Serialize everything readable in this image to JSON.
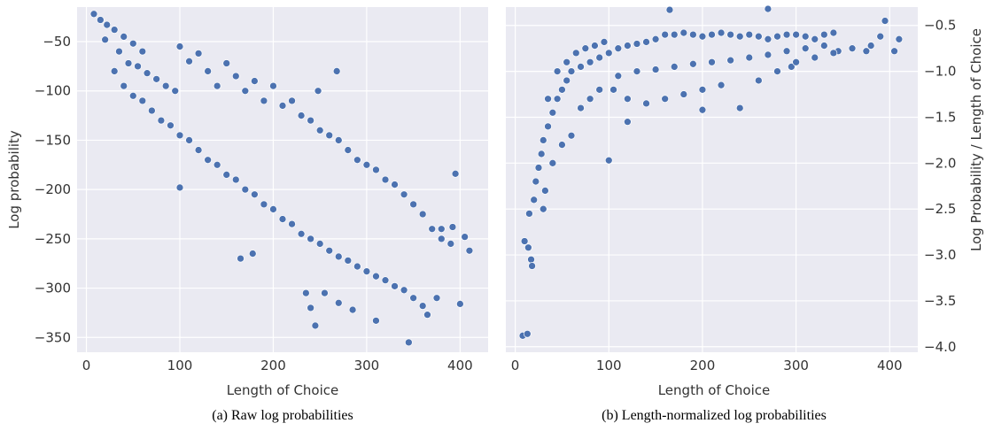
{
  "chart_data": [
    {
      "type": "scatter",
      "subplot_caption": "(a) Raw log probabilities",
      "xlabel": "Length of Choice",
      "ylabel": "Log probability",
      "xlim": [
        -10,
        430
      ],
      "ylim": [
        -365,
        -15
      ],
      "xticks": [
        0,
        100,
        200,
        300,
        400
      ],
      "yticks": [
        -350,
        -300,
        -250,
        -200,
        -150,
        -100,
        -50
      ],
      "ytick_labels": [
        "−350",
        "−300",
        "−250",
        "−200",
        "−150",
        "−100",
        "−50"
      ],
      "grid": true,
      "color": "#4c72b0",
      "points": [
        [
          8,
          -22
        ],
        [
          15,
          -28
        ],
        [
          22,
          -33
        ],
        [
          30,
          -38
        ],
        [
          40,
          -45
        ],
        [
          50,
          -52
        ],
        [
          60,
          -60
        ],
        [
          20,
          -48
        ],
        [
          35,
          -60
        ],
        [
          45,
          -72
        ],
        [
          55,
          -75
        ],
        [
          65,
          -82
        ],
        [
          75,
          -88
        ],
        [
          85,
          -95
        ],
        [
          95,
          -100
        ],
        [
          100,
          -55
        ],
        [
          110,
          -70
        ],
        [
          120,
          -62
        ],
        [
          130,
          -80
        ],
        [
          140,
          -95
        ],
        [
          150,
          -72
        ],
        [
          160,
          -85
        ],
        [
          170,
          -100
        ],
        [
          180,
          -90
        ],
        [
          190,
          -110
        ],
        [
          200,
          -95
        ],
        [
          210,
          -115
        ],
        [
          220,
          -110
        ],
        [
          230,
          -125
        ],
        [
          240,
          -130
        ],
        [
          250,
          -140
        ],
        [
          260,
          -145
        ],
        [
          270,
          -150
        ],
        [
          280,
          -160
        ],
        [
          290,
          -170
        ],
        [
          300,
          -175
        ],
        [
          310,
          -180
        ],
        [
          320,
          -190
        ],
        [
          330,
          -195
        ],
        [
          340,
          -205
        ],
        [
          350,
          -215
        ],
        [
          360,
          -225
        ],
        [
          370,
          -240
        ],
        [
          380,
          -250
        ],
        [
          390,
          -255
        ],
        [
          30,
          -80
        ],
        [
          40,
          -95
        ],
        [
          50,
          -105
        ],
        [
          60,
          -110
        ],
        [
          70,
          -120
        ],
        [
          80,
          -130
        ],
        [
          90,
          -135
        ],
        [
          100,
          -145
        ],
        [
          110,
          -150
        ],
        [
          120,
          -160
        ],
        [
          130,
          -170
        ],
        [
          140,
          -175
        ],
        [
          150,
          -185
        ],
        [
          160,
          -190
        ],
        [
          170,
          -200
        ],
        [
          180,
          -205
        ],
        [
          190,
          -215
        ],
        [
          200,
          -220
        ],
        [
          210,
          -230
        ],
        [
          220,
          -235
        ],
        [
          230,
          -245
        ],
        [
          240,
          -250
        ],
        [
          250,
          -255
        ],
        [
          260,
          -262
        ],
        [
          270,
          -268
        ],
        [
          280,
          -272
        ],
        [
          290,
          -278
        ],
        [
          300,
          -283
        ],
        [
          310,
          -288
        ],
        [
          320,
          -292
        ],
        [
          330,
          -298
        ],
        [
          340,
          -302
        ],
        [
          350,
          -310
        ],
        [
          360,
          -318
        ],
        [
          100,
          -198
        ],
        [
          165,
          -270
        ],
        [
          178,
          -265
        ],
        [
          235,
          -305
        ],
        [
          245,
          -338
        ],
        [
          240,
          -320
        ],
        [
          255,
          -305
        ],
        [
          270,
          -315
        ],
        [
          285,
          -322
        ],
        [
          310,
          -333
        ],
        [
          345,
          -355
        ],
        [
          365,
          -327
        ],
        [
          375,
          -310
        ],
        [
          400,
          -316
        ],
        [
          395,
          -184
        ],
        [
          410,
          -262
        ],
        [
          405,
          -248
        ],
        [
          392,
          -238
        ],
        [
          380,
          -240
        ],
        [
          268,
          -80
        ],
        [
          248,
          -100
        ]
      ]
    },
    {
      "type": "scatter",
      "subplot_caption": "(b) Length-normalized log probabilities",
      "xlabel": "Length of Choice",
      "ylabel": "Log Probability / Length of Choice",
      "xlim": [
        -10,
        430
      ],
      "ylim": [
        -4.06,
        -0.3
      ],
      "xticks": [
        0,
        100,
        200,
        300,
        400
      ],
      "yticks": [
        -4.0,
        -3.5,
        -3.0,
        -2.5,
        -2.0,
        -1.5,
        -1.0,
        -0.5
      ],
      "ytick_labels": [
        "−4.0",
        "−3.5",
        "−3.0",
        "−2.5",
        "−2.0",
        "−1.5",
        "−1.0",
        "−0.5"
      ],
      "grid": true,
      "color": "#4c72b0",
      "points": [
        [
          8,
          -3.88
        ],
        [
          13,
          -3.86
        ],
        [
          10,
          -2.85
        ],
        [
          14,
          -2.92
        ],
        [
          17,
          -3.05
        ],
        [
          18,
          -3.12
        ],
        [
          15,
          -2.55
        ],
        [
          20,
          -2.4
        ],
        [
          22,
          -2.2
        ],
        [
          25,
          -2.05
        ],
        [
          28,
          -1.9
        ],
        [
          30,
          -1.75
        ],
        [
          35,
          -1.6
        ],
        [
          40,
          -1.45
        ],
        [
          45,
          -1.3
        ],
        [
          50,
          -1.2
        ],
        [
          55,
          -1.1
        ],
        [
          60,
          -1.0
        ],
        [
          70,
          -0.95
        ],
        [
          80,
          -0.9
        ],
        [
          90,
          -0.85
        ],
        [
          100,
          -0.8
        ],
        [
          110,
          -0.75
        ],
        [
          120,
          -0.72
        ],
        [
          130,
          -0.7
        ],
        [
          140,
          -0.68
        ],
        [
          150,
          -0.65
        ],
        [
          160,
          -0.6
        ],
        [
          170,
          -0.6
        ],
        [
          180,
          -0.58
        ],
        [
          190,
          -0.6
        ],
        [
          200,
          -0.62
        ],
        [
          210,
          -0.6
        ],
        [
          220,
          -0.58
        ],
        [
          230,
          -0.6
        ],
        [
          240,
          -0.62
        ],
        [
          250,
          -0.6
        ],
        [
          260,
          -0.62
        ],
        [
          270,
          -0.65
        ],
        [
          280,
          -0.62
        ],
        [
          290,
          -0.6
        ],
        [
          300,
          -0.6
        ],
        [
          310,
          -0.62
        ],
        [
          320,
          -0.65
        ],
        [
          330,
          -0.6
        ],
        [
          340,
          -0.58
        ],
        [
          165,
          -0.33
        ],
        [
          270,
          -0.32
        ],
        [
          395,
          -0.45
        ],
        [
          410,
          -0.65
        ],
        [
          405,
          -0.78
        ],
        [
          375,
          -0.78
        ],
        [
          345,
          -0.78
        ],
        [
          295,
          -0.95
        ],
        [
          100,
          -1.97
        ],
        [
          60,
          -1.7
        ],
        [
          50,
          -1.8
        ],
        [
          40,
          -2.0
        ],
        [
          32,
          -2.3
        ],
        [
          30,
          -2.5
        ],
        [
          35,
          -1.3
        ],
        [
          45,
          -1.0
        ],
        [
          55,
          -0.9
        ],
        [
          65,
          -0.8
        ],
        [
          75,
          -0.75
        ],
        [
          85,
          -0.72
        ],
        [
          95,
          -0.68
        ],
        [
          105,
          -1.2
        ],
        [
          120,
          -1.3
        ],
        [
          140,
          -1.35
        ],
        [
          160,
          -1.3
        ],
        [
          180,
          -1.25
        ],
        [
          200,
          -1.2
        ],
        [
          220,
          -1.15
        ],
        [
          240,
          -1.4
        ],
        [
          260,
          -1.1
        ],
        [
          280,
          -1.0
        ],
        [
          300,
          -0.9
        ],
        [
          320,
          -0.85
        ],
        [
          340,
          -0.8
        ],
        [
          360,
          -0.75
        ],
        [
          380,
          -0.72
        ],
        [
          390,
          -0.62
        ],
        [
          70,
          -1.4
        ],
        [
          80,
          -1.3
        ],
        [
          90,
          -1.2
        ],
        [
          110,
          -1.05
        ],
        [
          130,
          -1.0
        ],
        [
          150,
          -0.98
        ],
        [
          170,
          -0.95
        ],
        [
          190,
          -0.92
        ],
        [
          210,
          -0.9
        ],
        [
          230,
          -0.88
        ],
        [
          250,
          -0.85
        ],
        [
          270,
          -0.82
        ],
        [
          290,
          -0.78
        ],
        [
          310,
          -0.75
        ],
        [
          330,
          -0.72
        ],
        [
          120,
          -1.55
        ],
        [
          200,
          -1.42
        ]
      ]
    }
  ]
}
